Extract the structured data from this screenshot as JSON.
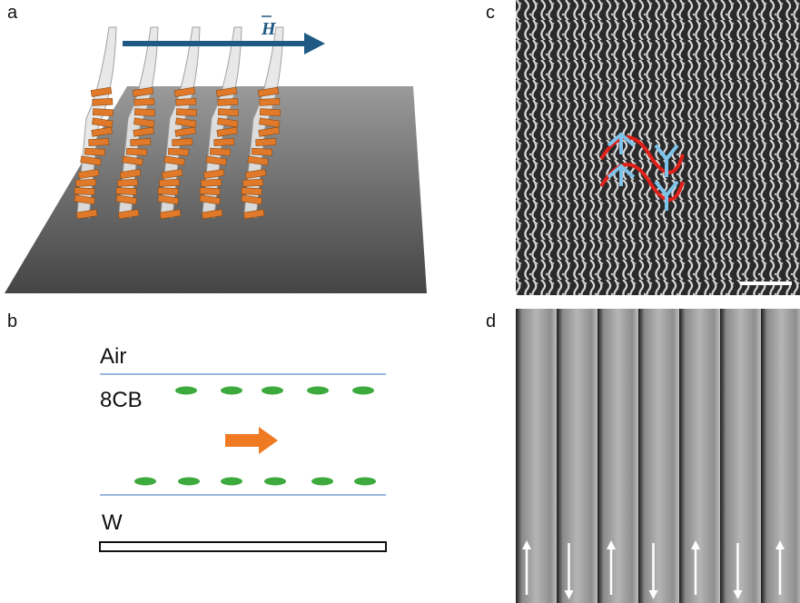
{
  "panels": [
    {
      "label": "a",
      "annotation": "H"
    },
    {
      "label": "b",
      "layers": [
        "Air",
        "8CB",
        "W"
      ]
    },
    {
      "label": "c"
    },
    {
      "label": "d"
    }
  ]
}
